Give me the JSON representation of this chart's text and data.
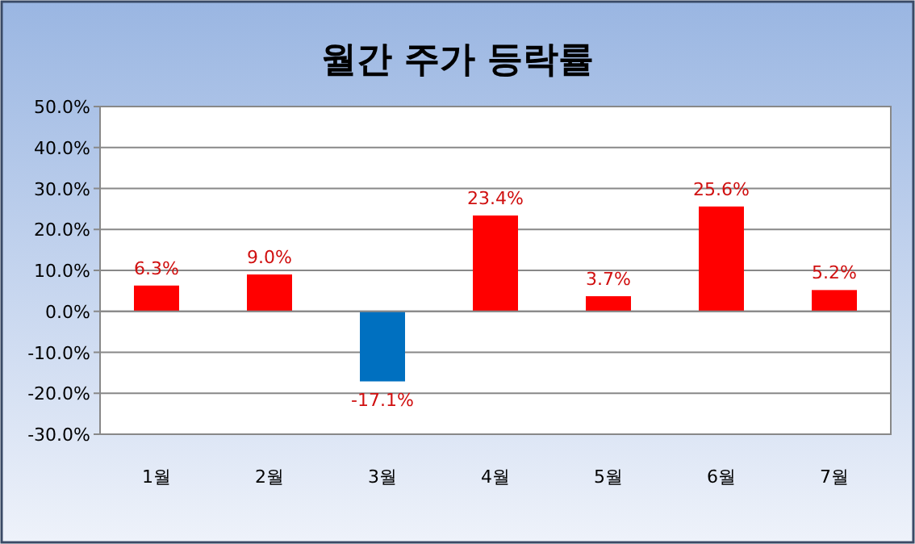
{
  "chart_data": {
    "type": "bar",
    "title": "월간 주가 등락률",
    "categories": [
      "1월",
      "2월",
      "3월",
      "4월",
      "5월",
      "6월",
      "7월"
    ],
    "values": [
      6.3,
      9.0,
      -17.1,
      23.4,
      3.7,
      25.6,
      5.2
    ],
    "colors": [
      "#ff0000",
      "#ff0000",
      "#0070c0",
      "#ff0000",
      "#ff0000",
      "#ff0000",
      "#ff0000"
    ],
    "value_labels": [
      "6.3%",
      "9.0%",
      "-17.1%",
      "23.4%",
      "3.7%",
      "25.6%",
      "5.2%"
    ],
    "ylim": [
      -30,
      50
    ],
    "yticks": [
      {
        "value": -30,
        "label": "-30.0%"
      },
      {
        "value": -20,
        "label": "-20.0%"
      },
      {
        "value": -10,
        "label": "-10.0%"
      },
      {
        "value": 0,
        "label": "0.0%"
      },
      {
        "value": 10,
        "label": "10.0%"
      },
      {
        "value": 20,
        "label": "20.0%"
      },
      {
        "value": 30,
        "label": "30.0%"
      },
      {
        "value": 40,
        "label": "40.0%"
      },
      {
        "value": 50,
        "label": "50.0%"
      }
    ],
    "grid": "y"
  }
}
